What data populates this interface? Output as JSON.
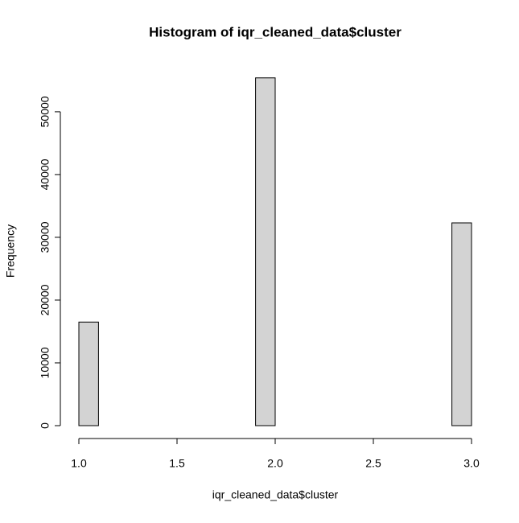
{
  "chart_data": {
    "type": "histogram",
    "title": "Histogram of iqr_cleaned_data$cluster",
    "x_label": "iqr_cleaned_data$cluster",
    "y_label": "Frequency",
    "bins": [
      1.0,
      1.1,
      1.2,
      1.3,
      1.4,
      1.5,
      1.6,
      1.7,
      1.8,
      1.9,
      2.0,
      2.1,
      2.2,
      2.3,
      2.4,
      2.5,
      2.6,
      2.7,
      2.8,
      2.9,
      3.0
    ],
    "values": [
      16500,
      0,
      0,
      0,
      0,
      0,
      0,
      0,
      0,
      55400,
      0,
      0,
      0,
      0,
      0,
      0,
      0,
      0,
      0,
      32300
    ],
    "color": "#d3d3d3",
    "xlim": [
      1,
      3
    ],
    "xticks": [
      {
        "value": 1,
        "label": "1.0"
      },
      1.5,
      {
        "value": 2,
        "label": "2.0"
      },
      2.5,
      {
        "value": 3,
        "label": "3.0"
      }
    ],
    "ylim": [
      0,
      55500
    ],
    "yticks": [
      0,
      10000,
      20000,
      30000,
      40000,
      50000
    ]
  }
}
